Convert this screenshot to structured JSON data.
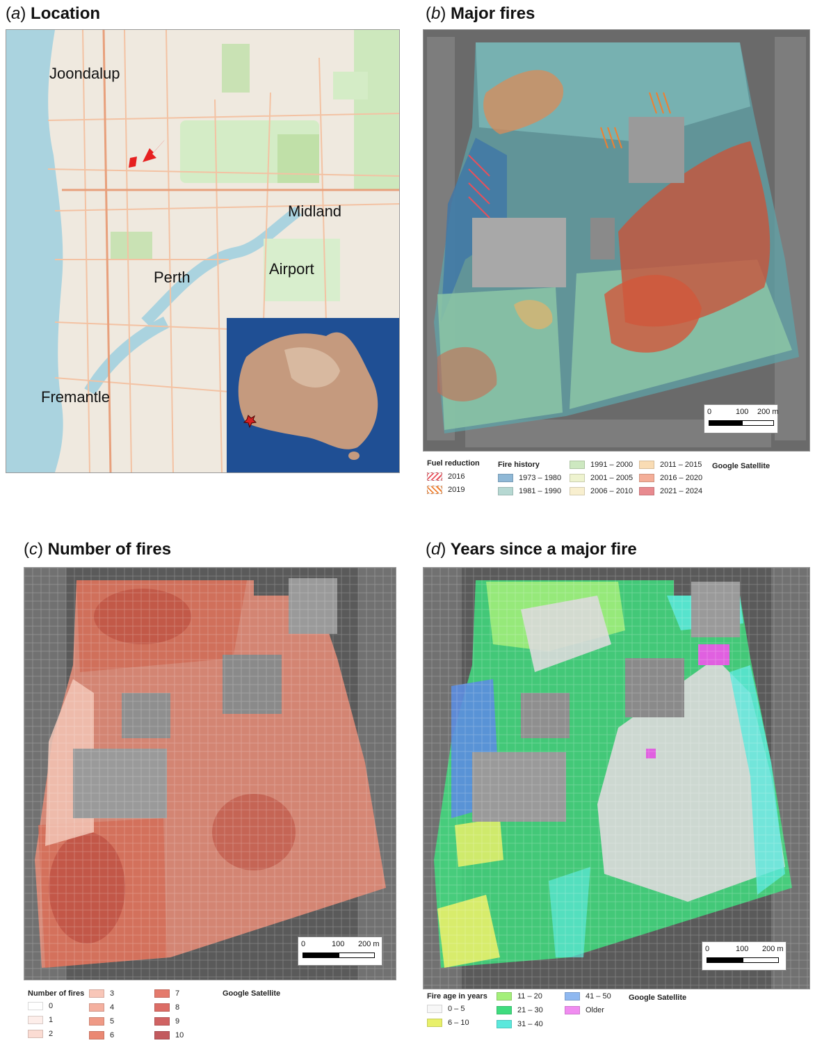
{
  "panels": {
    "a": {
      "letter": "a",
      "title": "Location",
      "places": [
        "Joondalup",
        "Midland",
        "Perth",
        "Airport",
        "Fremantle"
      ]
    },
    "b": {
      "letter": "b",
      "title": "Major fires"
    },
    "c": {
      "letter": "c",
      "title": "Number of fires"
    },
    "d": {
      "letter": "d",
      "title": "Years since a major fire"
    }
  },
  "scalebar": {
    "l0": "0",
    "l1": "100",
    "l2": "200 m"
  },
  "legend_b": {
    "fuel_title": "Fuel reduction",
    "fuel_items": [
      {
        "label": "2016",
        "color": "#e8505b"
      },
      {
        "label": "2019",
        "color": "#f08030"
      }
    ],
    "history_title": "Fire history",
    "history_items": [
      {
        "label": "1973 – 1980",
        "color": "#8fb8d6"
      },
      {
        "label": "1981 – 1990",
        "color": "#b6d8d2"
      },
      {
        "label": "1991 – 2000",
        "color": "#cde8c0"
      },
      {
        "label": "2001 – 2005",
        "color": "#eef3cf"
      },
      {
        "label": "2006 – 2010",
        "color": "#f8efcf"
      },
      {
        "label": "2011 – 2015",
        "color": "#f9dcb4"
      },
      {
        "label": "2016 – 2020",
        "color": "#f4ae98"
      },
      {
        "label": "2021 – 2024",
        "color": "#e88a8f"
      }
    ],
    "source": "Google Satellite"
  },
  "legend_c": {
    "title": "Number of fires",
    "items": [
      {
        "label": "0",
        "color": "#ffffff"
      },
      {
        "label": "1",
        "color": "#fdeeea"
      },
      {
        "label": "2",
        "color": "#fbdcd3"
      },
      {
        "label": "3",
        "color": "#f8c6b8"
      },
      {
        "label": "4",
        "color": "#f4b09f"
      },
      {
        "label": "5",
        "color": "#ef9a86"
      },
      {
        "label": "6",
        "color": "#ea8873"
      },
      {
        "label": "7",
        "color": "#e47a6c"
      },
      {
        "label": "8",
        "color": "#dc6d66"
      },
      {
        "label": "9",
        "color": "#d06363"
      },
      {
        "label": "10",
        "color": "#c25a5e"
      }
    ],
    "source": "Google Satellite"
  },
  "legend_d": {
    "title": "Fire age in years",
    "items": [
      {
        "label": "0 – 5",
        "color": "#f7f7f7"
      },
      {
        "label": "6 – 10",
        "color": "#e8f06a"
      },
      {
        "label": "11 – 20",
        "color": "#a4ef7a"
      },
      {
        "label": "21 – 30",
        "color": "#3fdc7e"
      },
      {
        "label": "31 – 40",
        "color": "#5be8dc"
      },
      {
        "label": "41 – 50",
        "color": "#8fb8f0"
      },
      {
        "label": "Older",
        "color": "#f08cf0"
      }
    ],
    "source": "Google Satellite"
  }
}
